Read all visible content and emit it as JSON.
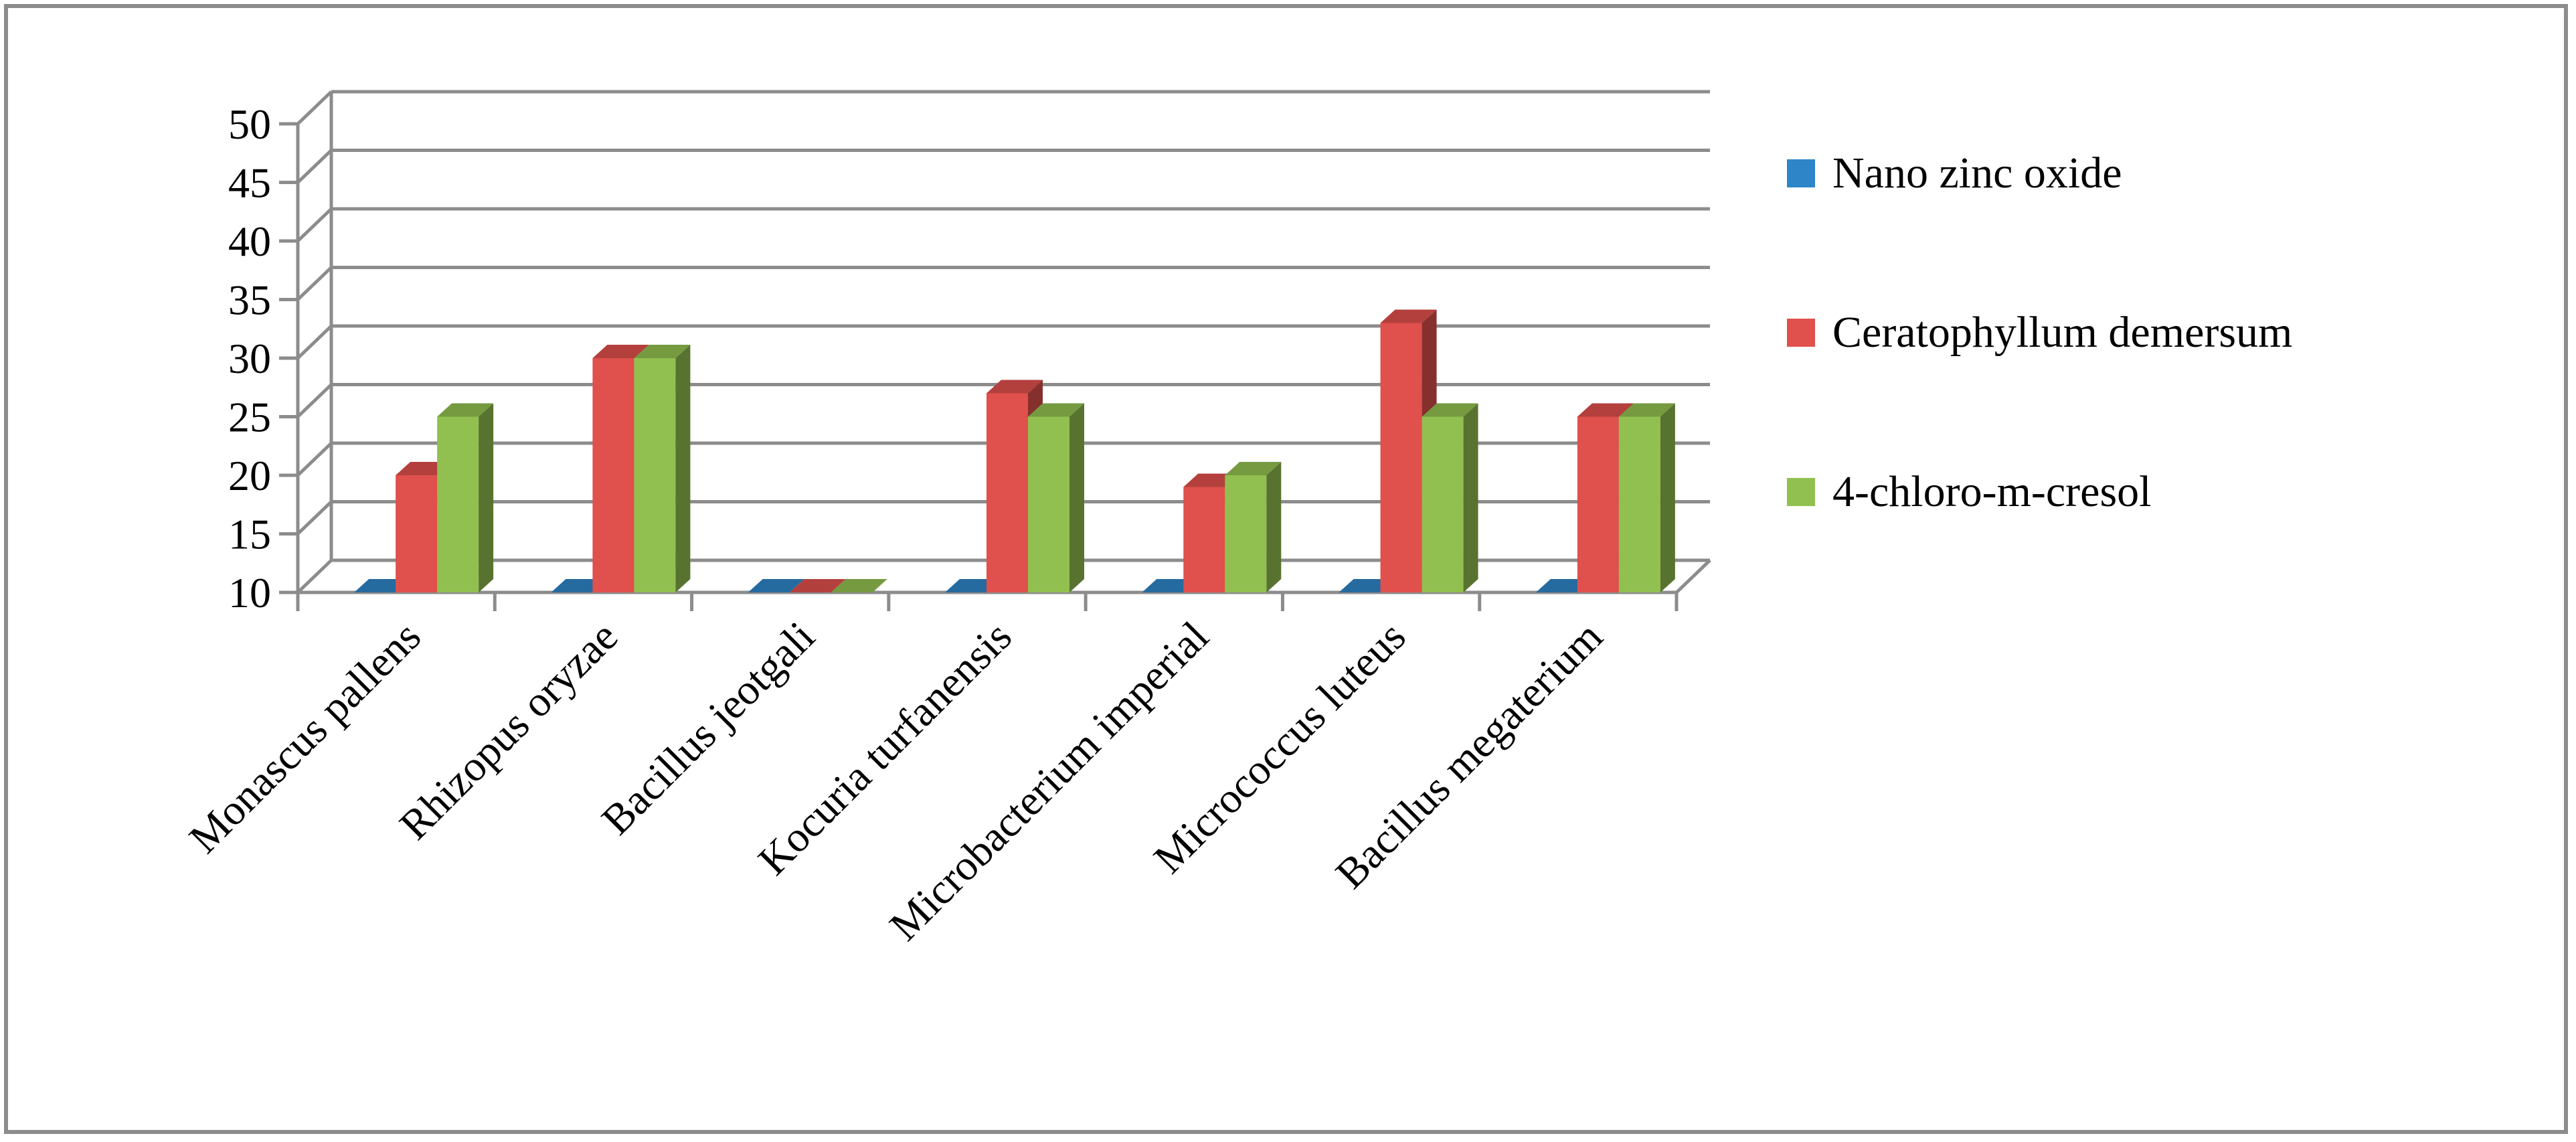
{
  "chart_data": {
    "type": "bar",
    "title": "",
    "xlabel": "",
    "ylabel": "",
    "ylim": [
      10,
      50
    ],
    "yticks": [
      10,
      15,
      20,
      25,
      30,
      35,
      40,
      45,
      50
    ],
    "grid": true,
    "legend_position": "right",
    "categories": [
      "Monascus pallens",
      "Rhizopus oryzae",
      "Bacillus jeotgali",
      "Kocuria turfanensis",
      "Microbacterium imperial",
      "Micrococcus luteus",
      "Bacillus megaterium"
    ],
    "series": [
      {
        "name": "Nano zinc oxide",
        "color": "#2e86c8",
        "values": [
          10,
          10,
          10,
          10,
          10,
          10,
          10
        ]
      },
      {
        "name": "Ceratophyllum demersum",
        "color": "#e0504c",
        "values": [
          20,
          30,
          10,
          27,
          19,
          33,
          25
        ]
      },
      {
        "name": "4-chloro-m-cresol",
        "color": "#92c050",
        "values": [
          25,
          30,
          10,
          25,
          20,
          25,
          25
        ]
      }
    ]
  }
}
